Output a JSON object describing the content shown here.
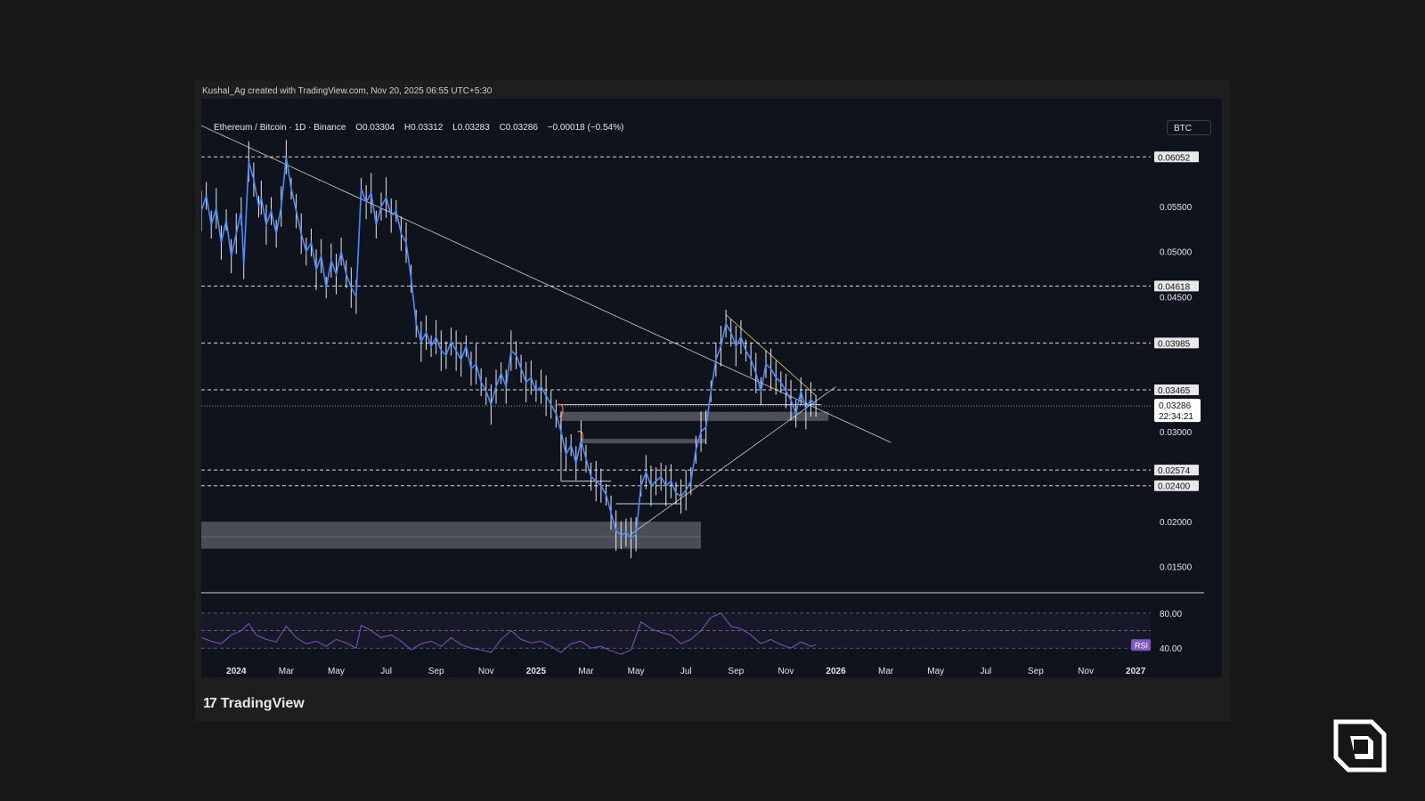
{
  "credit": "Kushal_Ag created with TradingView.com, Nov 20, 2025 06:55 UTC+5:30",
  "legend": {
    "symbol": "Ethereum / Bitcoin · 1D · Binance",
    "open": "O0.03304",
    "high": "H0.03312",
    "low": "L0.03283",
    "close": "C0.03286",
    "change": "−0.00018 (−0.54%)"
  },
  "currency": "BTC",
  "brand": "TradingView",
  "colors": {
    "price_line": "#4a8cff",
    "price_wick": "#ffffff",
    "rsi": "#7e57c2",
    "accent_orange": "#e8813a",
    "background": "#0f131c"
  },
  "chart_data": [
    {
      "type": "line",
      "ylim": [
        0.0128,
        0.0648
      ],
      "yticks": [
        "0.05500",
        "0.05000",
        "0.04500",
        "0.03000",
        "0.02000",
        "0.01500"
      ],
      "ytick_values": [
        0.055,
        0.05,
        0.045,
        0.03,
        0.02,
        0.015
      ],
      "x_labels": [
        {
          "text": "2024",
          "t": 0.0,
          "major": true
        },
        {
          "text": "Mar",
          "t": 2.0
        },
        {
          "text": "May",
          "t": 4.0
        },
        {
          "text": "Jul",
          "t": 6.0
        },
        {
          "text": "Sep",
          "t": 8.0
        },
        {
          "text": "Nov",
          "t": 10.0
        },
        {
          "text": "2025",
          "t": 12.0,
          "major": true
        },
        {
          "text": "Mar",
          "t": 14.0
        },
        {
          "text": "May",
          "t": 16.0
        },
        {
          "text": "Jul",
          "t": 18.0
        },
        {
          "text": "Sep",
          "t": 20.0
        },
        {
          "text": "Nov",
          "t": 22.0
        },
        {
          "text": "2026",
          "t": 24.0,
          "major": true
        },
        {
          "text": "Mar",
          "t": 26.0
        },
        {
          "text": "May",
          "t": 28.0
        },
        {
          "text": "Jul",
          "t": 30.0
        },
        {
          "text": "Sep",
          "t": 32.0
        },
        {
          "text": "Nov",
          "t": 34.0
        },
        {
          "text": "2027",
          "t": 36.0,
          "major": true
        }
      ],
      "xlim": [
        -1.4,
        36.6
      ],
      "levels": [
        {
          "value": 0.06052,
          "label": "0.06052"
        },
        {
          "value": 0.04618,
          "label": "0.04618"
        },
        {
          "value": 0.03985,
          "label": "0.03985"
        },
        {
          "value": 0.03465,
          "label": "0.03465"
        },
        {
          "value": 0.02574,
          "label": "0.02574"
        },
        {
          "value": 0.024,
          "label": "0.02400"
        }
      ],
      "current": {
        "value": 0.03286,
        "label": "0.03286",
        "countdown": "22:34:21"
      },
      "series": [
        {
          "points": [
            [
              -1.4,
              0.0545
            ],
            [
              -1.2,
              0.0562
            ],
            [
              -1.0,
              0.053
            ],
            [
              -0.8,
              0.0548
            ],
            [
              -0.6,
              0.051
            ],
            [
              -0.4,
              0.0535
            ],
            [
              -0.2,
              0.0495
            ],
            [
              0.0,
              0.052
            ],
            [
              0.2,
              0.0545
            ],
            [
              0.3,
              0.0485
            ],
            [
              0.5,
              0.06
            ],
            [
              0.7,
              0.058
            ],
            [
              0.9,
              0.055
            ],
            [
              1.0,
              0.056
            ],
            [
              1.2,
              0.053
            ],
            [
              1.4,
              0.0545
            ],
            [
              1.6,
              0.052
            ],
            [
              1.8,
              0.055
            ],
            [
              2.0,
              0.0605
            ],
            [
              2.2,
              0.057
            ],
            [
              2.4,
              0.0545
            ],
            [
              2.6,
              0.052
            ],
            [
              2.8,
              0.05
            ],
            [
              3.0,
              0.051
            ],
            [
              3.2,
              0.048
            ],
            [
              3.4,
              0.0495
            ],
            [
              3.6,
              0.046
            ],
            [
              3.8,
              0.049
            ],
            [
              4.0,
              0.0475
            ],
            [
              4.2,
              0.05
            ],
            [
              4.4,
              0.0475
            ],
            [
              4.6,
              0.046
            ],
            [
              4.8,
              0.045
            ],
            [
              5.0,
              0.057
            ],
            [
              5.2,
              0.0555
            ],
            [
              5.4,
              0.0565
            ],
            [
              5.6,
              0.053
            ],
            [
              5.8,
              0.055
            ],
            [
              6.0,
              0.056
            ],
            [
              6.2,
              0.054
            ],
            [
              6.4,
              0.0545
            ],
            [
              6.6,
              0.052
            ],
            [
              6.8,
              0.051
            ],
            [
              7.0,
              0.047
            ],
            [
              7.2,
              0.042
            ],
            [
              7.4,
              0.04
            ],
            [
              7.6,
              0.041
            ],
            [
              7.8,
              0.0395
            ],
            [
              8.0,
              0.0405
            ],
            [
              8.2,
              0.039
            ],
            [
              8.4,
              0.0385
            ],
            [
              8.6,
              0.04
            ],
            [
              8.8,
              0.039
            ],
            [
              9.0,
              0.038
            ],
            [
              9.2,
              0.0395
            ],
            [
              9.4,
              0.037
            ],
            [
              9.6,
              0.0375
            ],
            [
              9.8,
              0.0355
            ],
            [
              10.0,
              0.0345
            ],
            [
              10.2,
              0.033
            ],
            [
              10.4,
              0.035
            ],
            [
              10.6,
              0.0365
            ],
            [
              10.8,
              0.035
            ],
            [
              11.0,
              0.039
            ],
            [
              11.2,
              0.0385
            ],
            [
              11.4,
              0.037
            ],
            [
              11.6,
              0.0355
            ],
            [
              11.8,
              0.036
            ],
            [
              12.0,
              0.0345
            ],
            [
              12.2,
              0.035
            ],
            [
              12.4,
              0.034
            ],
            [
              12.6,
              0.033
            ],
            [
              12.8,
              0.032
            ],
            [
              13.0,
              0.03
            ],
            [
              13.2,
              0.0275
            ],
            [
              13.4,
              0.0285
            ],
            [
              13.6,
              0.0265
            ],
            [
              13.8,
              0.029
            ],
            [
              14.0,
              0.027
            ],
            [
              14.2,
              0.025
            ],
            [
              14.4,
              0.0245
            ],
            [
              14.6,
              0.024
            ],
            [
              14.8,
              0.023
            ],
            [
              15.0,
              0.021
            ],
            [
              15.2,
              0.019
            ],
            [
              15.4,
              0.0185
            ],
            [
              15.6,
              0.0188
            ],
            [
              15.8,
              0.0182
            ],
            [
              16.0,
              0.0186
            ],
            [
              16.2,
              0.024
            ],
            [
              16.4,
              0.0255
            ],
            [
              16.6,
              0.024
            ],
            [
              16.8,
              0.0245
            ],
            [
              17.0,
              0.025
            ],
            [
              17.2,
              0.024
            ],
            [
              17.4,
              0.0245
            ],
            [
              17.6,
              0.0232
            ],
            [
              17.8,
              0.0228
            ],
            [
              18.0,
              0.0235
            ],
            [
              18.2,
              0.0245
            ],
            [
              18.4,
              0.028
            ],
            [
              18.6,
              0.03
            ],
            [
              18.8,
              0.0305
            ],
            [
              19.0,
              0.0345
            ],
            [
              19.2,
              0.038
            ],
            [
              19.4,
              0.0395
            ],
            [
              19.6,
              0.042
            ],
            [
              19.8,
              0.041
            ],
            [
              20.0,
              0.0395
            ],
            [
              20.2,
              0.0405
            ],
            [
              20.4,
              0.039
            ],
            [
              20.6,
              0.038
            ],
            [
              20.8,
              0.0365
            ],
            [
              21.0,
              0.0345
            ],
            [
              21.2,
              0.0375
            ],
            [
              21.4,
              0.037
            ],
            [
              21.6,
              0.036
            ],
            [
              21.8,
              0.0355
            ],
            [
              22.0,
              0.0345
            ],
            [
              22.2,
              0.0335
            ],
            [
              22.4,
              0.032
            ],
            [
              22.6,
              0.0345
            ],
            [
              22.8,
              0.0325
            ],
            [
              23.0,
              0.0336
            ],
            [
              23.2,
              0.03286
            ]
          ]
        }
      ]
    },
    {
      "type": "line",
      "ylim": [
        25,
        90
      ],
      "yticks": [
        "80.00",
        "40.00"
      ],
      "ytick_values": [
        80,
        40
      ],
      "badge": "RSI",
      "series": [
        {
          "points": [
            [
              -1.4,
              52
            ],
            [
              -1.0,
              48
            ],
            [
              -0.6,
              45
            ],
            [
              -0.2,
              55
            ],
            [
              0.2,
              60
            ],
            [
              0.5,
              68
            ],
            [
              0.8,
              55
            ],
            [
              1.2,
              50
            ],
            [
              1.6,
              47
            ],
            [
              2.0,
              65
            ],
            [
              2.4,
              52
            ],
            [
              2.8,
              45
            ],
            [
              3.2,
              48
            ],
            [
              3.6,
              42
            ],
            [
              4.0,
              50
            ],
            [
              4.4,
              46
            ],
            [
              4.8,
              40
            ],
            [
              5.0,
              66
            ],
            [
              5.4,
              60
            ],
            [
              5.8,
              52
            ],
            [
              6.2,
              55
            ],
            [
              6.6,
              48
            ],
            [
              7.0,
              38
            ],
            [
              7.4,
              45
            ],
            [
              7.8,
              48
            ],
            [
              8.2,
              42
            ],
            [
              8.6,
              52
            ],
            [
              9.0,
              44
            ],
            [
              9.4,
              40
            ],
            [
              9.8,
              38
            ],
            [
              10.2,
              35
            ],
            [
              10.6,
              50
            ],
            [
              11.0,
              60
            ],
            [
              11.4,
              50
            ],
            [
              11.8,
              46
            ],
            [
              12.2,
              48
            ],
            [
              12.6,
              42
            ],
            [
              13.0,
              35
            ],
            [
              13.4,
              45
            ],
            [
              13.8,
              48
            ],
            [
              14.2,
              40
            ],
            [
              14.6,
              42
            ],
            [
              15.0,
              37
            ],
            [
              15.4,
              33
            ],
            [
              15.8,
              38
            ],
            [
              16.2,
              70
            ],
            [
              16.6,
              62
            ],
            [
              17.0,
              58
            ],
            [
              17.4,
              55
            ],
            [
              17.8,
              45
            ],
            [
              18.2,
              50
            ],
            [
              18.6,
              60
            ],
            [
              19.0,
              75
            ],
            [
              19.4,
              80
            ],
            [
              19.8,
              65
            ],
            [
              20.2,
              62
            ],
            [
              20.6,
              55
            ],
            [
              21.0,
              45
            ],
            [
              21.4,
              50
            ],
            [
              21.8,
              44
            ],
            [
              22.2,
              40
            ],
            [
              22.6,
              47
            ],
            [
              23.0,
              42
            ],
            [
              23.2,
              44
            ]
          ]
        }
      ]
    }
  ]
}
